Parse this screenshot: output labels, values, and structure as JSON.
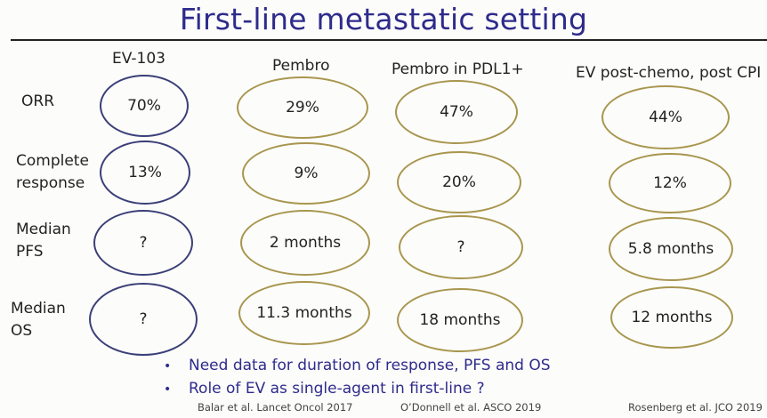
{
  "title": "First-line metastatic setting",
  "columns": [
    "EV-103",
    "Pembro",
    "Pembro in PDL1+",
    "EV post-chemo, post CPI"
  ],
  "rows": [
    {
      "label_lines": [
        "ORR"
      ],
      "values": [
        "70%",
        "29%",
        "47%",
        "44%"
      ]
    },
    {
      "label_lines": [
        "Complete",
        "response"
      ],
      "values": [
        "13%",
        "9%",
        "20%",
        "12%"
      ]
    },
    {
      "label_lines": [
        "Median",
        "PFS"
      ],
      "values": [
        "?",
        "2 months",
        "?",
        "5.8 months"
      ]
    },
    {
      "label_lines": [
        "Median",
        "OS"
      ],
      "values": [
        "?",
        "11.3 months",
        "18  months",
        "12 months"
      ]
    }
  ],
  "bullets": [
    "Need data for duration of response, PFS and OS",
    "Role of EV as single-agent in first-line ?"
  ],
  "bullet_glyph": "•",
  "references": [
    "Balar et al. Lancet Oncol 2017",
    "O’Donnell et al. ASCO 2019",
    "Rosenberg et al. JCO 2019"
  ],
  "colors": {
    "title": "#2e2b8c",
    "oval_ev103": "#3b3f78",
    "oval_other": "#a8964e"
  }
}
